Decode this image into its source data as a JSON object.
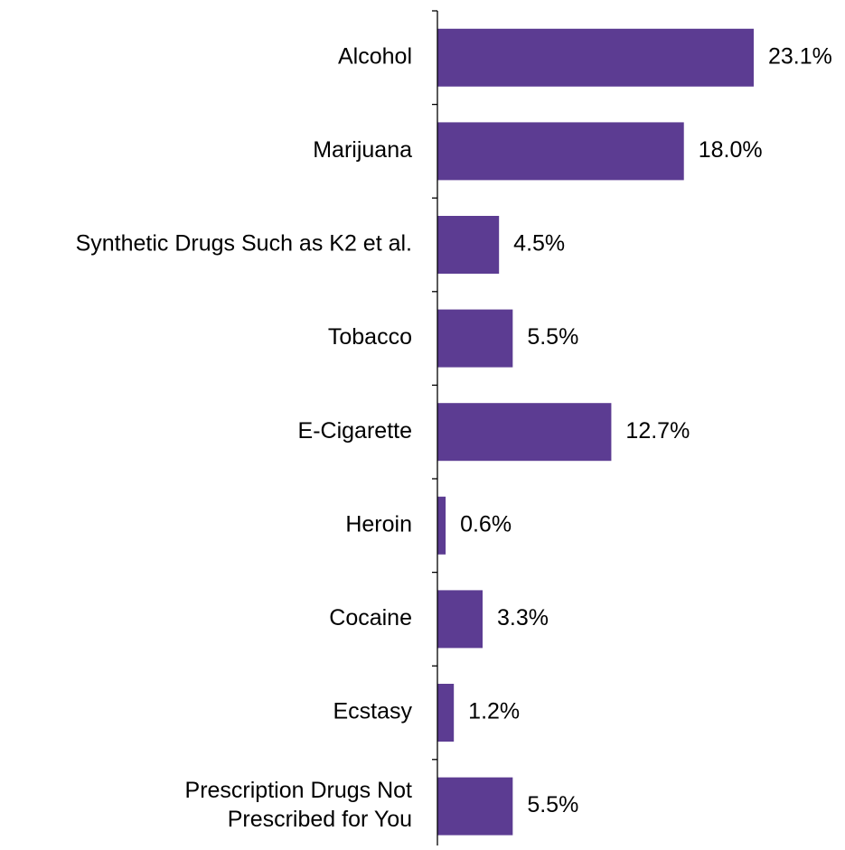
{
  "chart_data": {
    "type": "bar",
    "orientation": "horizontal",
    "categories": [
      [
        "Alcohol"
      ],
      [
        "Marijuana"
      ],
      [
        "Synthetic Drugs Such as K2 et al."
      ],
      [
        "Tobacco"
      ],
      [
        "E-Cigarette"
      ],
      [
        "Heroin"
      ],
      [
        "Cocaine"
      ],
      [
        "Ecstasy"
      ],
      [
        "Prescription Drugs Not",
        "Prescribed for You"
      ]
    ],
    "values": [
      23.1,
      18.0,
      4.5,
      5.5,
      12.7,
      0.6,
      3.3,
      1.2,
      5.5
    ],
    "value_labels": [
      "23.1%",
      "18.0%",
      "4.5%",
      "5.5%",
      "12.7%",
      "0.6%",
      "3.3%",
      "1.2%",
      "5.5%"
    ],
    "bar_color": "#5c3c92",
    "axis_color": "#000000",
    "xlim": [
      0,
      30
    ],
    "grid": false,
    "legend": "none"
  }
}
